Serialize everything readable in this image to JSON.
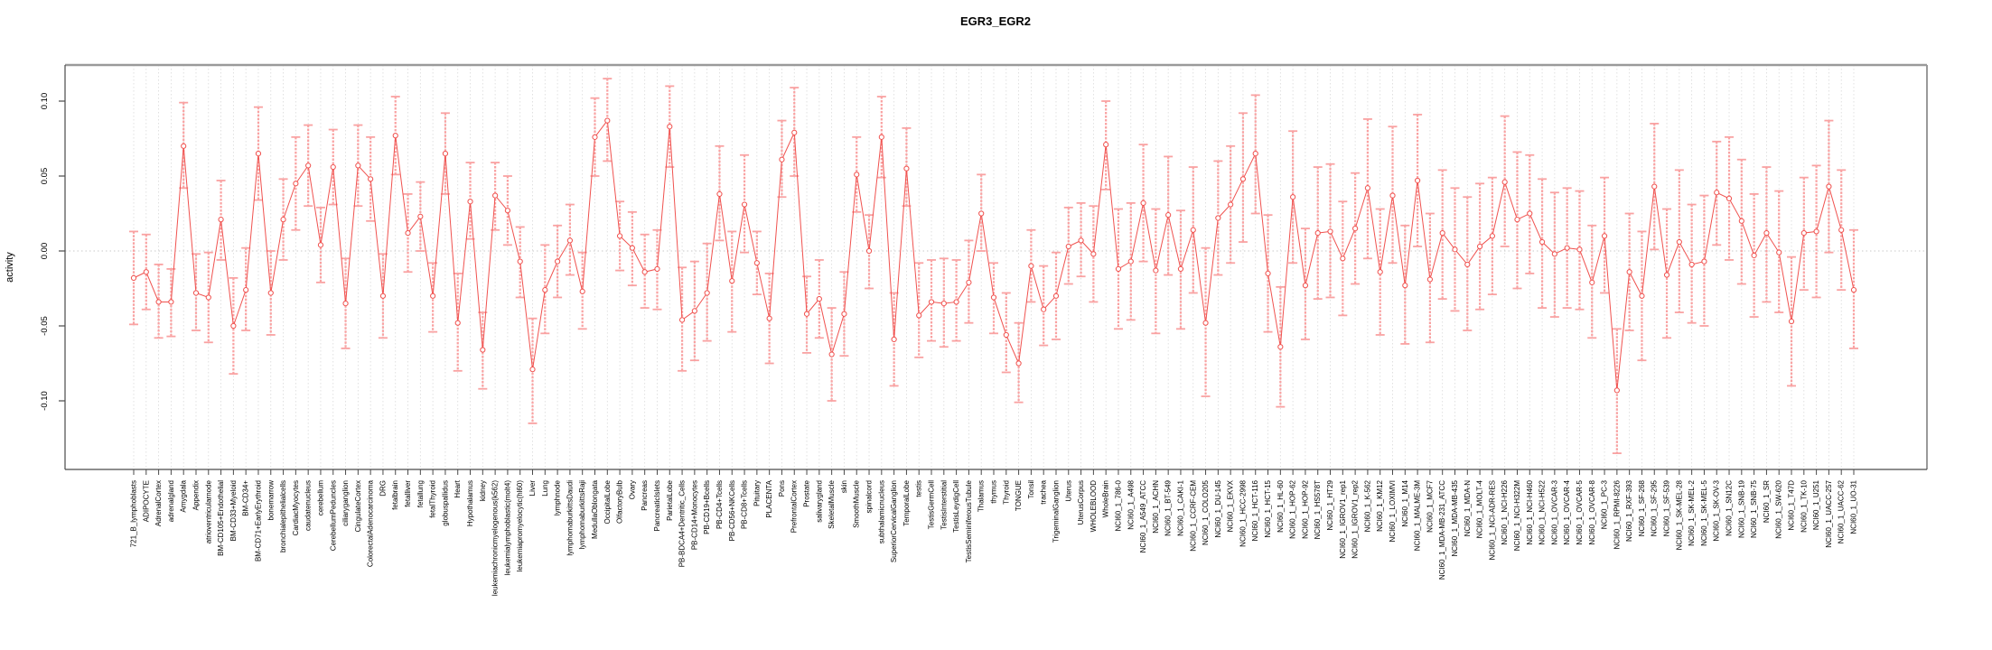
{
  "chart_data": {
    "type": "line",
    "title": "EGR3_EGR2",
    "ylabel": "activity",
    "xlabel": "",
    "ylim": [
      -0.146,
      0.124
    ],
    "yticks": [
      0.1,
      0.05,
      0.0,
      -0.05,
      -0.1
    ],
    "ytick_labels": [
      "0.10",
      "0.05",
      "0.00",
      "-0.05",
      "-0.10"
    ],
    "grid": "vertical-dashed-per-category, dotted-zero-line",
    "legend_position": "none",
    "marker": "open-circle",
    "error_bars": true,
    "series_color": "#f0524f",
    "errorbar_color": "#f9a2a2",
    "grid_color": "#d9d9d9",
    "categories": [
      "721_B_lymphoblasts",
      "ADIPOCYTE",
      "AdrenalCortex",
      "adrenalgland",
      "Amygdala",
      "Appendix",
      "atrioventricularnode",
      "BM-CD105+Endothelial",
      "BM-CD33+Myeloid",
      "BM-CD34+",
      "BM-CD71+EarlyErythroid",
      "bonemarrow",
      "bronchialepithelialcells",
      "CardiacMyocytes",
      "caudatenucleus",
      "cerebellum",
      "CerebellumPeduncles",
      "ciliaryganglion",
      "CingulateCortex",
      "ColorectalAdenocarcinoma",
      "DRG",
      "fetalbrain",
      "fetalliver",
      "fetallung",
      "fetalThyroid",
      "globuspallidus",
      "Heart",
      "Hypothalamus",
      "kidney",
      "leukemiachronicmyelogenous(k562)",
      "leukemialymphoblastic(molt4)",
      "leukemiapromyelocytic(hl60)",
      "Liver",
      "Lung",
      "lymphnode",
      "lymphomaburkittsDaudi",
      "lymphomaburkittsRaji",
      "MedullaOblongata",
      "OccipitalLobe",
      "OlfactoryBulb",
      "Ovary",
      "Pancreas",
      "PancreaticIslets",
      "ParietalLobe",
      "PB-BDCA4+Dentritic_Cells",
      "PB-CD14+Monocytes",
      "PB-CD19+Bcells",
      "PB-CD4+Tcells",
      "PB-CD56+NKCells",
      "PB-CD8+Tcells",
      "Pituitary",
      "PLACENTA",
      "Pons",
      "PrefrontalCortex",
      "Prostate",
      "salivarygland",
      "SkeletalMuscle",
      "skin",
      "SmoothMuscle",
      "spinalcord",
      "subthalamicnucleus",
      "SuperiorCervicalGanglion",
      "TemporalLobe",
      "testis",
      "TestisGermCell",
      "TestisInterstitial",
      "TestisLeydigCell",
      "TestisSeminiferousTubule",
      "Thalamus",
      "thymus",
      "Thyroid",
      "TONGUE",
      "Tonsil",
      "trachea",
      "TrigeminalGanglion",
      "Uterus",
      "UterusCorpus",
      "WHOLEBLOOD",
      "WholeBrain",
      "NCI60_1_786-0",
      "NCI60_1_A498",
      "NCI60_1_A549_ATCC",
      "NCI60_1_ACHN",
      "NCI60_1_BT-549",
      "NCI60_1_CAKI-1",
      "NCI60_1_CCRF-CEM",
      "NCI60_1_COLO205",
      "NCI60_1_DU-145",
      "NCI60_1_EKVX",
      "NCI60_1_HCC-2998",
      "NCI60_1_HCT-116",
      "NCI60_1_HCT-15",
      "NCI60_1_HL-60",
      "NCI60_1_HOP-62",
      "NCI60_1_HOP-92",
      "NCI60_1_HS578T",
      "NCI60_1_HT29",
      "NCI60_1_IGROV1_rep1",
      "NCI60_1_IGROV1_rep2",
      "NCI60_1_K-562",
      "NCI60_1_KM12",
      "NCI60_1_LOXIMVI",
      "NCI60_1_M14",
      "NCI60_1_MALME-3M",
      "NCI60_1_MCF7",
      "NCI60_1_MDA-MB-231_ATCC",
      "NCI60_1_MDA-MB-435",
      "NCI60_1_MDA-N",
      "NCI60_1_MOLT-4",
      "NCI60_1_NCI-ADR-RES",
      "NCI60_1_NCI-H226",
      "NCI60_1_NCI-H322M",
      "NCI60_1_NCI-H460",
      "NCI60_1_NCI-H522",
      "NCI60_1_OVCAR-3",
      "NCI60_1_OVCAR-4",
      "NCI60_1_OVCAR-5",
      "NCI60_1_OVCAR-8",
      "NCI60_1_PC-3",
      "NCI60_1_RPMI-8226",
      "NCI60_1_RXF-393",
      "NCI60_1_SF-268",
      "NCI60_1_SF-295",
      "NCI60_1_SF-539",
      "NCI60_1_SK-MEL-28",
      "NCI60_1_SK-MEL-2",
      "NCI60_1_SK-MEL-5",
      "NCI60_1_SK-OV-3",
      "NCI60_1_SN12C",
      "NCI60_1_SNB-19",
      "NCI60_1_SNB-75",
      "NCI60_1_SR",
      "NCI60_1_SW-620",
      "NCI60_1_T47D",
      "NCI60_1_TK-10",
      "NCI60_1_U251",
      "NCI60_1_UACC-257",
      "NCI60_1_UACC-62",
      "NCI60_1_UO-31"
    ],
    "values": [
      -0.018,
      -0.014,
      -0.034,
      -0.034,
      0.07,
      -0.028,
      -0.031,
      0.021,
      -0.05,
      -0.026,
      0.065,
      -0.028,
      0.021,
      0.045,
      0.057,
      0.004,
      0.056,
      -0.035,
      0.057,
      0.048,
      -0.03,
      0.077,
      0.012,
      0.023,
      -0.03,
      0.065,
      -0.048,
      0.033,
      -0.066,
      0.037,
      0.027,
      -0.007,
      -0.079,
      -0.026,
      -0.007,
      0.007,
      -0.027,
      0.076,
      0.087,
      0.01,
      0.002,
      -0.014,
      -0.012,
      0.083,
      -0.046,
      -0.04,
      -0.028,
      0.038,
      -0.02,
      0.031,
      -0.008,
      -0.045,
      0.061,
      0.079,
      -0.042,
      -0.032,
      -0.069,
      -0.042,
      0.051,
      0.0,
      0.076,
      -0.059,
      0.055,
      -0.043,
      -0.034,
      -0.035,
      -0.034,
      -0.021,
      0.025,
      -0.031,
      -0.056,
      -0.075,
      -0.01,
      -0.039,
      -0.03,
      0.003,
      0.007,
      -0.002,
      0.071,
      -0.012,
      -0.007,
      0.032,
      -0.013,
      0.024,
      -0.012,
      0.014,
      -0.048,
      0.022,
      0.031,
      0.048,
      0.065,
      -0.015,
      -0.064,
      0.036,
      -0.023,
      0.012,
      0.013,
      -0.005,
      0.015,
      0.042,
      -0.014,
      0.037,
      -0.023,
      0.047,
      -0.019,
      0.012,
      0.001,
      -0.009,
      0.003,
      0.01,
      0.046,
      0.021,
      0.025,
      0.006,
      -0.002,
      0.002,
      0.001,
      -0.021,
      0.01,
      -0.093,
      -0.014,
      -0.03,
      0.043,
      -0.016,
      0.006,
      -0.009,
      -0.007,
      0.039,
      0.035,
      0.02,
      -0.003,
      0.012,
      -0.001,
      -0.047,
      0.012,
      0.013,
      0.043,
      0.014,
      -0.026
    ],
    "err_lo": [
      -0.049,
      -0.039,
      -0.058,
      -0.057,
      0.042,
      -0.053,
      -0.061,
      -0.006,
      -0.082,
      -0.053,
      0.034,
      -0.056,
      -0.006,
      0.014,
      0.03,
      -0.021,
      0.031,
      -0.065,
      0.03,
      0.02,
      -0.058,
      0.051,
      -0.014,
      0.0,
      -0.054,
      0.038,
      -0.08,
      0.008,
      -0.092,
      0.014,
      0.004,
      -0.031,
      -0.115,
      -0.055,
      -0.031,
      -0.016,
      -0.052,
      0.05,
      0.06,
      -0.013,
      -0.023,
      -0.038,
      -0.039,
      0.056,
      -0.08,
      -0.073,
      -0.06,
      0.007,
      -0.054,
      -0.001,
      -0.029,
      -0.075,
      0.036,
      0.05,
      -0.068,
      -0.058,
      -0.1,
      -0.07,
      0.026,
      -0.025,
      0.049,
      -0.09,
      0.03,
      -0.071,
      -0.06,
      -0.064,
      -0.06,
      -0.048,
      0.0,
      -0.055,
      -0.081,
      -0.101,
      -0.034,
      -0.063,
      -0.059,
      -0.022,
      -0.017,
      -0.034,
      0.041,
      -0.052,
      -0.046,
      -0.007,
      -0.055,
      -0.016,
      -0.052,
      -0.028,
      -0.097,
      -0.016,
      -0.008,
      0.006,
      0.025,
      -0.054,
      -0.104,
      -0.008,
      -0.059,
      -0.032,
      -0.031,
      -0.043,
      -0.022,
      -0.005,
      -0.056,
      -0.008,
      -0.062,
      0.003,
      -0.061,
      -0.032,
      -0.04,
      -0.053,
      -0.039,
      -0.029,
      0.003,
      -0.025,
      -0.015,
      -0.038,
      -0.044,
      -0.038,
      -0.039,
      -0.058,
      -0.028,
      -0.135,
      -0.053,
      -0.073,
      0.001,
      -0.058,
      -0.041,
      -0.048,
      -0.05,
      0.004,
      -0.006,
      -0.022,
      -0.044,
      -0.034,
      -0.041,
      -0.09,
      -0.026,
      -0.031,
      -0.001,
      -0.026,
      -0.065
    ],
    "err_hi": [
      0.013,
      0.011,
      -0.009,
      -0.012,
      0.099,
      -0.002,
      -0.001,
      0.047,
      -0.018,
      0.002,
      0.096,
      0.0,
      0.048,
      0.076,
      0.084,
      0.029,
      0.081,
      -0.005,
      0.084,
      0.076,
      -0.002,
      0.103,
      0.038,
      0.046,
      -0.008,
      0.092,
      -0.015,
      0.059,
      -0.041,
      0.059,
      0.05,
      0.016,
      -0.045,
      0.004,
      0.017,
      0.031,
      -0.001,
      0.102,
      0.115,
      0.033,
      0.026,
      0.011,
      0.014,
      0.11,
      -0.011,
      -0.007,
      0.005,
      0.07,
      0.013,
      0.064,
      0.013,
      -0.015,
      0.087,
      0.109,
      -0.017,
      -0.006,
      -0.038,
      -0.014,
      0.076,
      0.024,
      0.103,
      -0.028,
      0.082,
      -0.008,
      -0.006,
      -0.005,
      -0.006,
      0.007,
      0.051,
      -0.008,
      -0.028,
      -0.048,
      0.014,
      -0.01,
      -0.001,
      0.029,
      0.032,
      0.03,
      0.1,
      0.028,
      0.032,
      0.071,
      0.028,
      0.063,
      0.027,
      0.056,
      0.002,
      0.06,
      0.07,
      0.092,
      0.104,
      0.024,
      -0.024,
      0.08,
      0.015,
      0.056,
      0.058,
      0.033,
      0.052,
      0.088,
      0.028,
      0.083,
      0.017,
      0.091,
      0.025,
      0.054,
      0.042,
      0.036,
      0.045,
      0.049,
      0.09,
      0.066,
      0.064,
      0.048,
      0.039,
      0.042,
      0.04,
      0.017,
      0.049,
      -0.052,
      0.025,
      0.013,
      0.085,
      0.028,
      0.054,
      0.031,
      0.037,
      0.073,
      0.076,
      0.061,
      0.038,
      0.056,
      0.04,
      -0.004,
      0.049,
      0.057,
      0.087,
      0.054,
      0.014
    ]
  }
}
